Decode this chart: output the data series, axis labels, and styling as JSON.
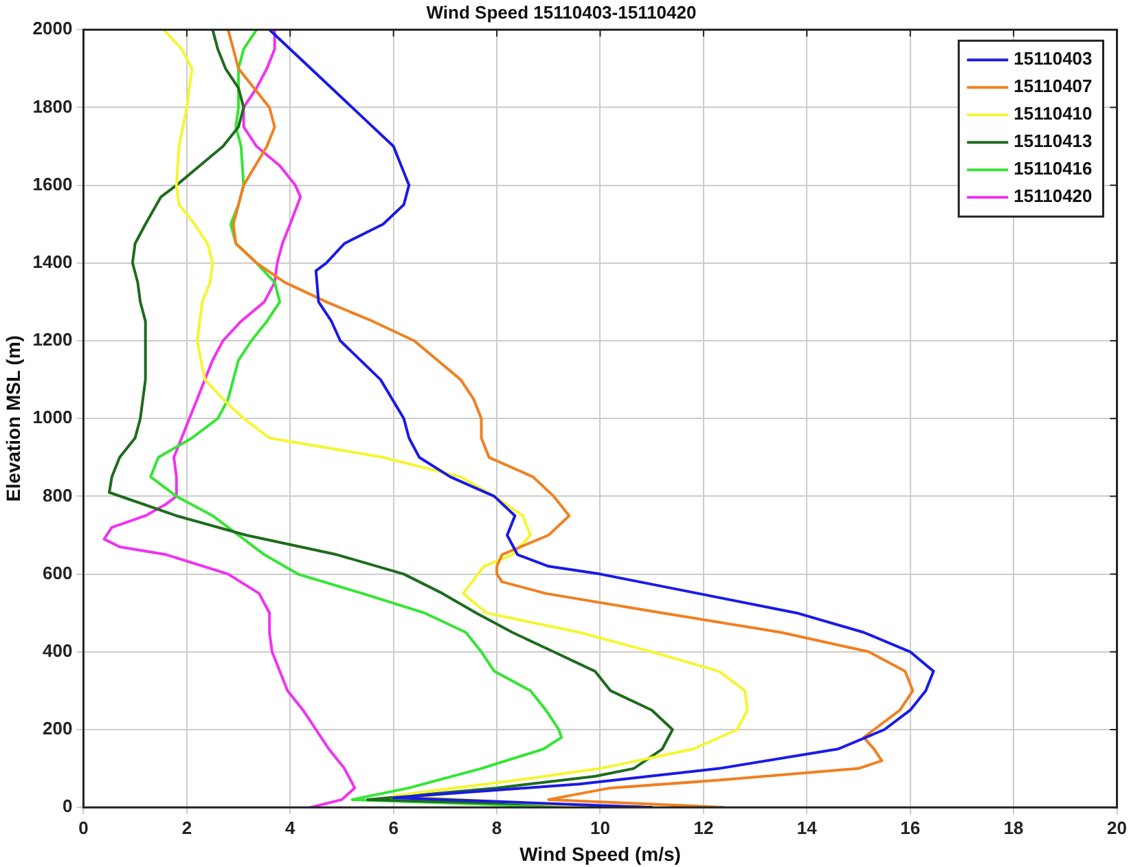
{
  "chart_data": {
    "type": "line",
    "title": "Wind Speed 15110403-15110420",
    "xlabel": "Wind Speed (m/s)",
    "ylabel": "Elevation MSL (m)",
    "xlim": [
      0,
      20
    ],
    "xticks": [
      0,
      2,
      4,
      6,
      8,
      10,
      12,
      14,
      16,
      18,
      20
    ],
    "ylim": [
      0,
      2000
    ],
    "yticks": [
      0,
      200,
      400,
      600,
      800,
      1000,
      1200,
      1400,
      1600,
      1800,
      2000
    ],
    "grid": true,
    "legend": "top right",
    "marker": "none",
    "line_style": "solid",
    "series": [
      {
        "name": "15110403",
        "color": "#1a1ae6",
        "x": [
          11.0,
          6.0,
          9.6,
          12.3,
          14.6,
          15.5,
          16.0,
          16.3,
          16.45,
          16.0,
          15.1,
          13.8,
          11.9,
          10.0,
          9.0,
          8.4,
          8.2,
          8.35,
          7.95,
          7.1,
          6.5,
          6.3,
          6.2,
          5.75,
          4.97,
          4.8,
          4.55,
          4.5,
          4.7,
          5.05,
          5.8,
          6.2,
          6.3,
          6.0,
          5.2,
          4.4,
          3.6
        ],
        "values": [
          0,
          25,
          60,
          100,
          150,
          200,
          250,
          300,
          350,
          400,
          450,
          500,
          550,
          600,
          620,
          650,
          700,
          750,
          800,
          850,
          900,
          950,
          1000,
          1100,
          1200,
          1250,
          1300,
          1380,
          1400,
          1450,
          1500,
          1550,
          1600,
          1700,
          1800,
          1900,
          2000
        ]
      },
      {
        "name": "15110407",
        "color": "#f08020",
        "x": [
          12.4,
          9.0,
          10.2,
          12.3,
          15.0,
          15.45,
          15.3,
          15.1,
          15.3,
          15.8,
          16.05,
          15.9,
          15.2,
          13.5,
          11.2,
          8.95,
          8.1,
          8.0,
          8.0,
          8.1,
          9.0,
          9.4,
          9.1,
          8.7,
          7.85,
          7.7,
          7.7,
          7.55,
          7.3,
          6.85,
          6.4,
          5.6,
          4.7,
          3.9,
          3.35,
          2.95,
          2.9,
          3.1,
          3.55,
          3.7,
          3.6,
          3.0,
          2.8
        ],
        "values": [
          0,
          20,
          50,
          70,
          100,
          120,
          150,
          180,
          200,
          250,
          300,
          350,
          400,
          450,
          500,
          550,
          580,
          600,
          620,
          650,
          700,
          750,
          800,
          850,
          900,
          950,
          1000,
          1050,
          1100,
          1150,
          1200,
          1250,
          1300,
          1350,
          1400,
          1450,
          1500,
          1600,
          1700,
          1750,
          1800,
          1900,
          2000
        ]
      },
      {
        "name": "15110410",
        "color": "#f5f532",
        "x": [
          10.1,
          6.0,
          8.4,
          10.0,
          11.8,
          12.65,
          12.85,
          12.8,
          12.3,
          11.0,
          9.6,
          7.8,
          7.35,
          7.75,
          8.3,
          8.65,
          8.5,
          7.95,
          7.3,
          5.8,
          3.6,
          3.1,
          2.7,
          2.35,
          2.2,
          2.3,
          2.45,
          2.5,
          2.4,
          2.15,
          1.85,
          1.8,
          1.85,
          2.0,
          2.05,
          2.1,
          1.9,
          1.55
        ],
        "values": [
          0,
          30,
          70,
          100,
          150,
          200,
          250,
          300,
          350,
          400,
          450,
          500,
          550,
          620,
          650,
          700,
          750,
          800,
          850,
          900,
          950,
          1000,
          1050,
          1100,
          1200,
          1300,
          1350,
          1400,
          1450,
          1500,
          1550,
          1600,
          1700,
          1800,
          1850,
          1900,
          1950,
          2000
        ]
      },
      {
        "name": "15110413",
        "color": "#1e6b1e",
        "x": [
          11.0,
          5.5,
          8.0,
          9.9,
          10.65,
          11.2,
          11.4,
          11.0,
          10.2,
          9.9,
          9.1,
          8.3,
          7.6,
          6.95,
          6.2,
          4.9,
          3.15,
          1.8,
          0.5,
          0.55,
          0.7,
          1.0,
          1.1,
          1.2,
          1.2,
          1.1,
          1.05,
          0.95,
          1.0,
          1.2,
          1.5,
          1.8,
          2.25,
          2.7,
          3.0,
          3.1,
          3.0,
          2.75,
          2.6,
          2.5
        ],
        "values": [
          0,
          20,
          50,
          80,
          100,
          150,
          200,
          250,
          300,
          350,
          400,
          450,
          500,
          550,
          600,
          650,
          700,
          750,
          810,
          850,
          900,
          950,
          1000,
          1100,
          1250,
          1300,
          1350,
          1400,
          1450,
          1500,
          1570,
          1600,
          1650,
          1700,
          1750,
          1800,
          1850,
          1900,
          1950,
          2000
        ]
      },
      {
        "name": "15110416",
        "color": "#33e633",
        "x": [
          9.5,
          5.2,
          6.3,
          7.7,
          8.9,
          9.25,
          9.2,
          8.95,
          8.65,
          7.95,
          7.7,
          7.4,
          6.6,
          5.4,
          4.15,
          3.5,
          3.0,
          2.5,
          1.8,
          1.3,
          1.45,
          2.1,
          2.6,
          2.8,
          2.9,
          3.0,
          3.25,
          3.55,
          3.8,
          3.7,
          3.35,
          2.95,
          2.85,
          3.0,
          3.1,
          3.05,
          2.95,
          3.0,
          3.0,
          3.1,
          3.35
        ],
        "values": [
          0,
          20,
          50,
          100,
          150,
          180,
          200,
          250,
          300,
          350,
          400,
          450,
          500,
          550,
          600,
          650,
          700,
          750,
          800,
          850,
          900,
          950,
          1000,
          1050,
          1100,
          1150,
          1200,
          1250,
          1300,
          1350,
          1400,
          1450,
          1500,
          1550,
          1600,
          1700,
          1750,
          1800,
          1900,
          1950,
          2000
        ]
      },
      {
        "name": "15110420",
        "color": "#f032f0",
        "x": [
          4.4,
          5.0,
          5.25,
          5.05,
          4.75,
          4.5,
          4.25,
          3.95,
          3.8,
          3.65,
          3.6,
          3.6,
          3.4,
          2.8,
          1.6,
          0.7,
          0.4,
          0.55,
          1.2,
          1.6,
          1.8,
          1.8,
          1.75,
          1.9,
          2.05,
          2.2,
          2.35,
          2.5,
          2.7,
          3.05,
          3.5,
          3.7,
          3.75,
          3.85,
          4.0,
          4.2,
          4.1,
          3.8,
          3.35,
          3.1,
          3.1,
          3.35,
          3.55,
          3.7,
          3.7
        ],
        "values": [
          0,
          20,
          50,
          100,
          150,
          200,
          250,
          300,
          350,
          400,
          450,
          500,
          550,
          600,
          650,
          670,
          690,
          720,
          750,
          780,
          800,
          850,
          900,
          950,
          1000,
          1050,
          1100,
          1150,
          1200,
          1250,
          1300,
          1350,
          1400,
          1450,
          1500,
          1570,
          1600,
          1650,
          1700,
          1750,
          1800,
          1850,
          1900,
          1950,
          2000
        ]
      }
    ]
  }
}
